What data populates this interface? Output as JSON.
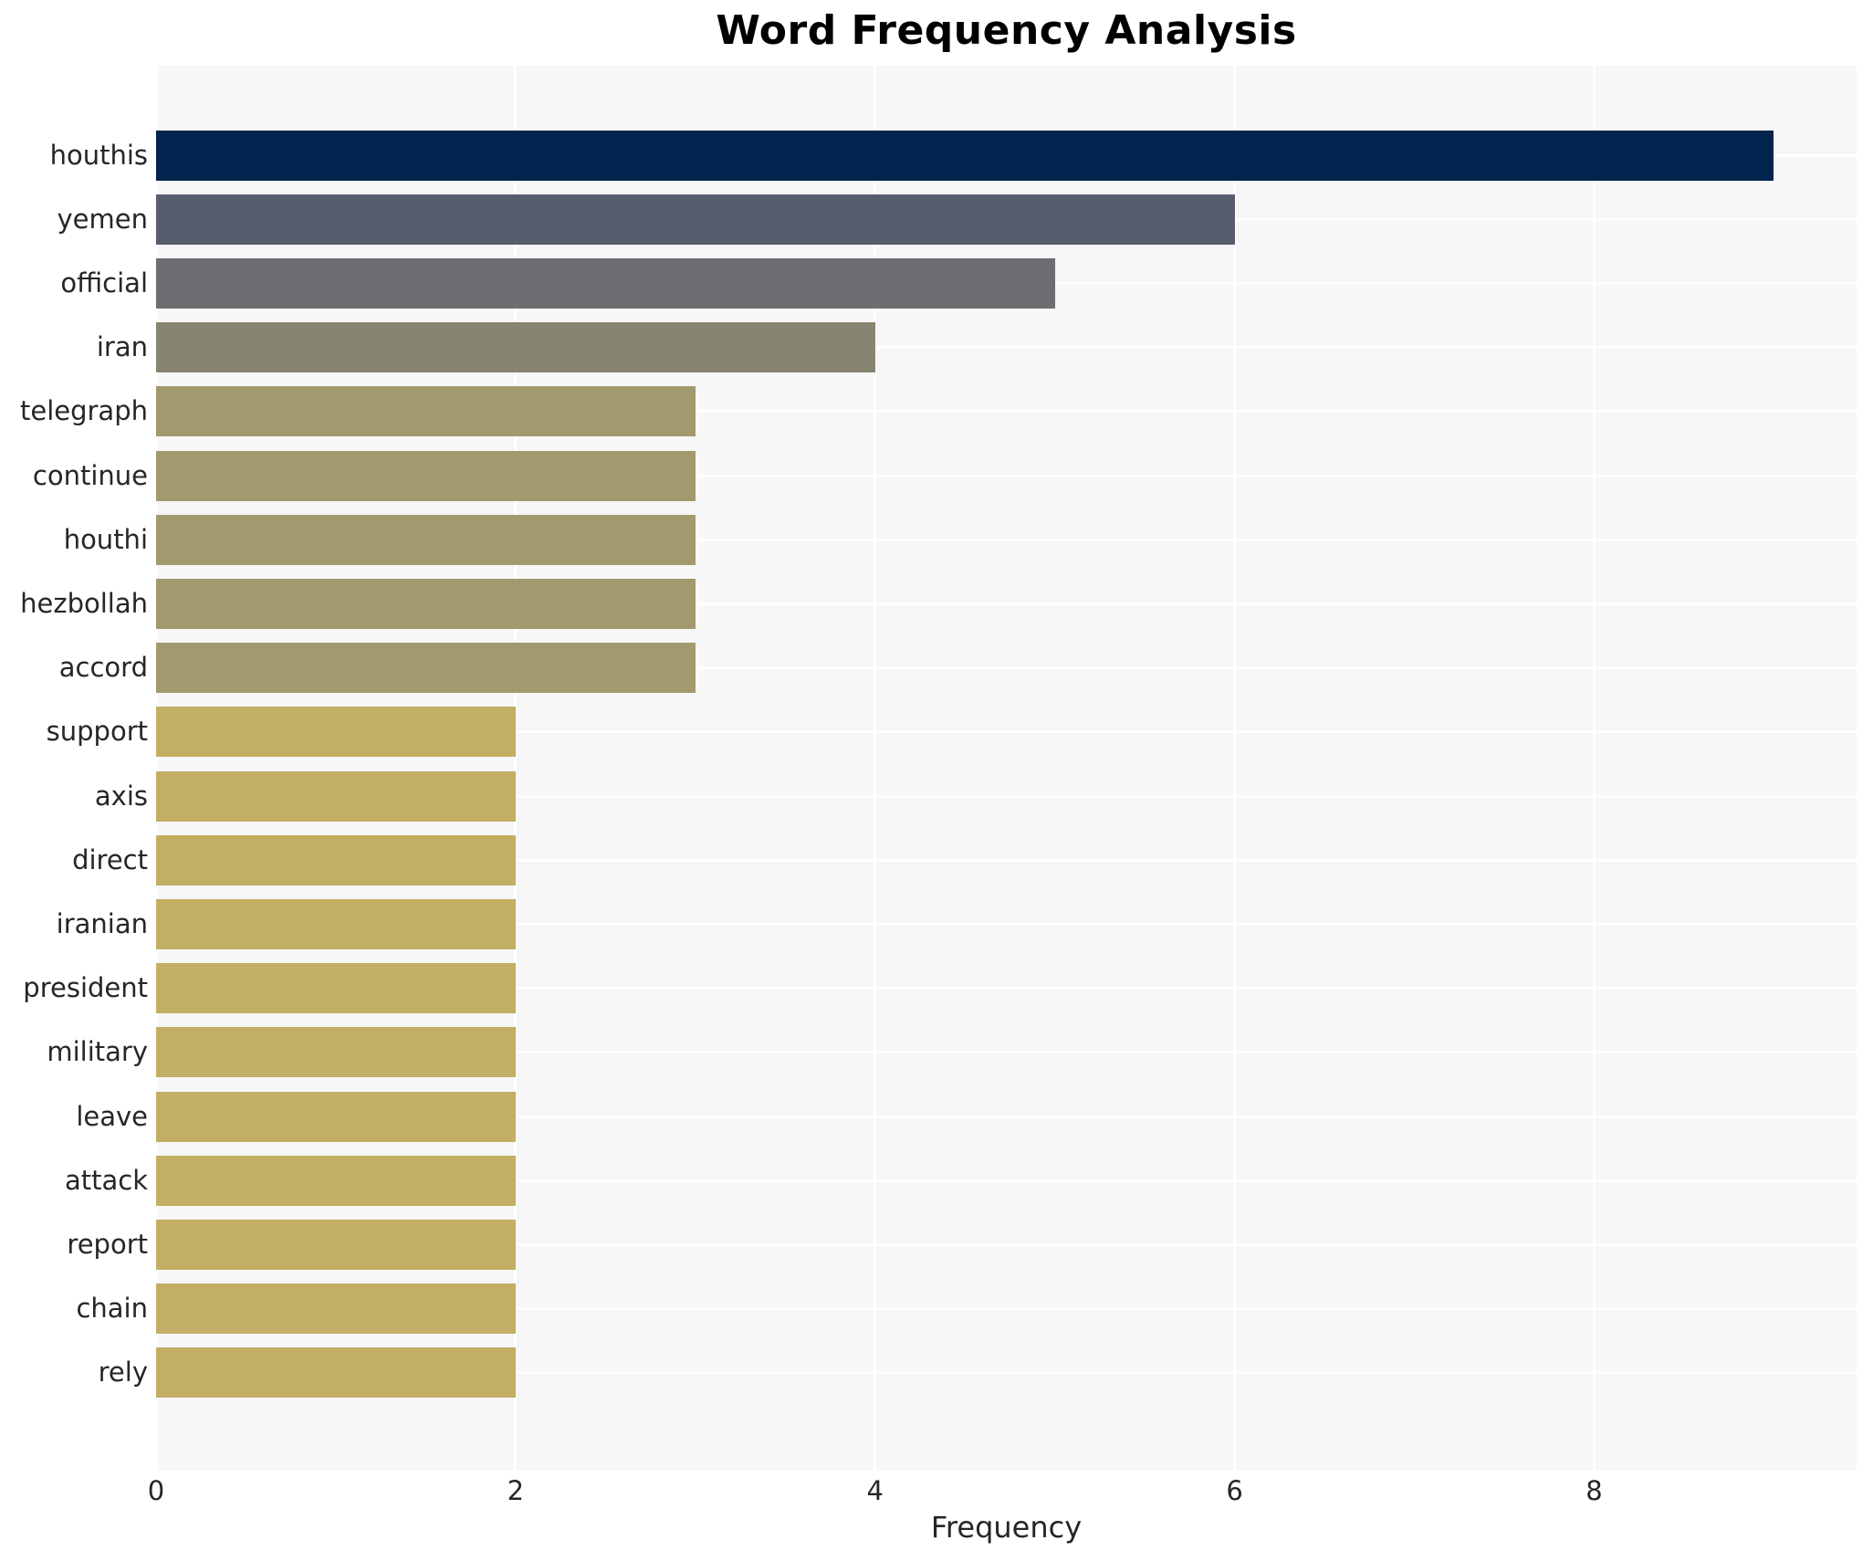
{
  "title": "Word Frequency Analysis",
  "xlabel": "Frequency",
  "colors": {
    "plot_background": "#f7f7f8",
    "grid": "#ffffff",
    "text": "#262626",
    "title_text": "#000000"
  },
  "chart_data": {
    "type": "bar",
    "orientation": "horizontal",
    "title": "Word Frequency Analysis",
    "xlabel": "Frequency",
    "ylabel": "",
    "xlim": [
      0,
      9.46
    ],
    "x_ticks": [
      0,
      2,
      4,
      6,
      8
    ],
    "grid": true,
    "legend": false,
    "categories": [
      "houthis",
      "yemen",
      "official",
      "iran",
      "telegraph",
      "continue",
      "houthi",
      "hezbollah",
      "accord",
      "support",
      "axis",
      "direct",
      "iranian",
      "president",
      "military",
      "leave",
      "attack",
      "report",
      "chain",
      "rely"
    ],
    "values": [
      9,
      6,
      5,
      4,
      3,
      3,
      3,
      3,
      3,
      2,
      2,
      2,
      2,
      2,
      2,
      2,
      2,
      2,
      2,
      2
    ],
    "bar_colors": [
      "#02234d",
      "#575d6d",
      "#6d6e71",
      "#87856f",
      "#a29a6e",
      "#a29a6e",
      "#a29a6e",
      "#a29a6e",
      "#a29a6e",
      "#c2ae64",
      "#c2ae64",
      "#c2ae64",
      "#c2ae64",
      "#c2ae64",
      "#c2ae64",
      "#c2ae64",
      "#c2ae64",
      "#c2ae64",
      "#c2ae64",
      "#c2ae64"
    ]
  }
}
